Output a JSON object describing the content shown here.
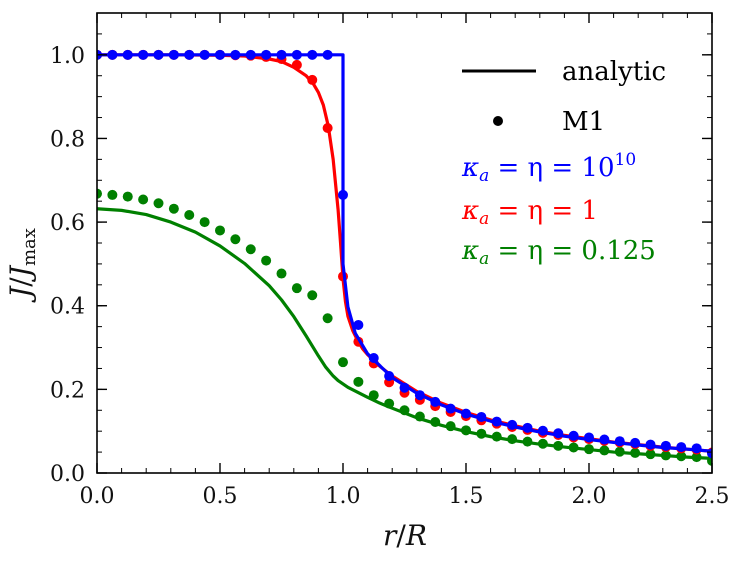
{
  "chart_data": {
    "type": "line",
    "title": "",
    "xlabel": "r/R",
    "ylabel": "J/J_max",
    "xlim": [
      0.0,
      2.5
    ],
    "ylim": [
      0.0,
      1.1
    ],
    "xticks": [
      "0.0",
      "0.5",
      "1.0",
      "1.5",
      "2.0",
      "2.5"
    ],
    "yticks": [
      "0.0",
      "0.2",
      "0.4",
      "0.6",
      "0.8",
      "1.0"
    ],
    "xlabel_parts": {
      "a": "r",
      "slash": "/",
      "b": "R"
    },
    "ylabel_parts": {
      "a": "J",
      "slash": "/",
      "b": "J",
      "sub": "max"
    },
    "legend": {
      "analytic_label": "analytic",
      "m1_label": "M1",
      "entries": [
        {
          "name": "κ_a = η = 10^10",
          "prefix": "κ",
          "sub": "a",
          "eq": " = η = 10",
          "sup": "10",
          "color": "#0000ff"
        },
        {
          "name": "κ_a = η = 1",
          "prefix": "κ",
          "sub": "a",
          "eq": " = η = 1",
          "sup": "",
          "color": "#ff0000"
        },
        {
          "name": "κ_a = η = 0.125",
          "prefix": "κ",
          "sub": "a",
          "eq": " = η = 0.125",
          "sup": "",
          "color": "#008000"
        }
      ]
    },
    "series": [
      {
        "name": "κ_a = η = 10^10 (analytic)",
        "kind": "line",
        "color": "#0000ff",
        "x": [
          0.0,
          0.998,
          1.0,
          1.0,
          1.02,
          1.05,
          1.1,
          1.2,
          1.3,
          1.4,
          1.5,
          1.6,
          1.7,
          1.8,
          1.9,
          2.0,
          2.1,
          2.2,
          2.3,
          2.4,
          2.5
        ],
        "y": [
          1.0,
          1.0,
          1.0,
          0.5,
          0.397,
          0.334,
          0.285,
          0.228,
          0.191,
          0.163,
          0.141,
          0.124,
          0.11,
          0.098,
          0.088,
          0.08,
          0.073,
          0.067,
          0.061,
          0.057,
          0.052
        ]
      },
      {
        "name": "κ_a = η = 10^10 (M1)",
        "kind": "points",
        "color": "#0000ff",
        "x": [
          0.0,
          0.0625,
          0.125,
          0.1875,
          0.25,
          0.3125,
          0.375,
          0.4375,
          0.5,
          0.5625,
          0.625,
          0.6875,
          0.75,
          0.8125,
          0.875,
          0.9375,
          1.0,
          1.0625,
          1.125,
          1.1875,
          1.25,
          1.3125,
          1.375,
          1.4375,
          1.5,
          1.5625,
          1.625,
          1.6875,
          1.75,
          1.8125,
          1.875,
          1.9375,
          2.0,
          2.0625,
          2.125,
          2.1875,
          2.25,
          2.3125,
          2.375,
          2.4375,
          2.5
        ],
        "y": [
          1.0,
          1.0,
          1.0,
          1.0,
          1.0,
          1.0,
          1.0,
          1.0,
          1.0,
          1.0,
          1.0,
          1.0,
          1.0,
          1.0,
          1.0,
          1.0,
          0.665,
          0.354,
          0.275,
          0.232,
          0.204,
          0.186,
          0.17,
          0.154,
          0.142,
          0.134,
          0.123,
          0.115,
          0.108,
          0.101,
          0.095,
          0.089,
          0.085,
          0.08,
          0.076,
          0.072,
          0.068,
          0.065,
          0.062,
          0.059,
          0.047
        ]
      },
      {
        "name": "κ_a = η = 1 (analytic)",
        "kind": "line",
        "color": "#ff0000",
        "x": [
          0.0,
          0.3,
          0.5,
          0.6,
          0.7,
          0.75,
          0.8,
          0.85,
          0.88,
          0.9,
          0.92,
          0.94,
          0.96,
          0.98,
          0.99,
          1.0,
          1.01,
          1.02,
          1.04,
          1.06,
          1.08,
          1.1,
          1.15,
          1.2,
          1.3,
          1.4,
          1.5,
          1.6,
          1.7,
          1.8,
          1.9,
          2.0,
          2.1,
          2.2,
          2.3,
          2.4,
          2.5
        ],
        "y": [
          1.0,
          1.0,
          0.999,
          0.997,
          0.99,
          0.984,
          0.97,
          0.95,
          0.93,
          0.91,
          0.88,
          0.83,
          0.75,
          0.63,
          0.55,
          0.465,
          0.41,
          0.375,
          0.34,
          0.316,
          0.297,
          0.283,
          0.255,
          0.232,
          0.195,
          0.167,
          0.145,
          0.127,
          0.113,
          0.1,
          0.09,
          0.082,
          0.074,
          0.068,
          0.062,
          0.057,
          0.052
        ]
      },
      {
        "name": "κ_a = η = 1 (M1)",
        "kind": "points",
        "color": "#ff0000",
        "x": [
          0.0,
          0.0625,
          0.125,
          0.1875,
          0.25,
          0.3125,
          0.375,
          0.4375,
          0.5,
          0.5625,
          0.625,
          0.6875,
          0.75,
          0.8125,
          0.875,
          0.9375,
          1.0,
          1.0625,
          1.125,
          1.1875,
          1.25,
          1.3125,
          1.375,
          1.4375,
          1.5,
          1.5625,
          1.625,
          1.6875,
          1.75,
          1.8125,
          1.875,
          1.9375,
          2.0,
          2.0625,
          2.125,
          2.1875,
          2.25,
          2.3125,
          2.375,
          2.4375,
          2.5
        ],
        "y": [
          1.0,
          1.0,
          1.0,
          1.0,
          1.0,
          1.0,
          1.0,
          1.0,
          1.0,
          0.999,
          0.998,
          0.995,
          0.99,
          0.976,
          0.94,
          0.825,
          0.47,
          0.314,
          0.262,
          0.217,
          0.192,
          0.175,
          0.16,
          0.146,
          0.136,
          0.126,
          0.118,
          0.11,
          0.103,
          0.096,
          0.091,
          0.085,
          0.081,
          0.077,
          0.073,
          0.069,
          0.065,
          0.062,
          0.059,
          0.056,
          0.049
        ]
      },
      {
        "name": "κ_a = η = 0.125 (analytic)",
        "kind": "line",
        "color": "#008000",
        "x": [
          0.0,
          0.1,
          0.2,
          0.3,
          0.4,
          0.5,
          0.6,
          0.7,
          0.75,
          0.8,
          0.85,
          0.9,
          0.93,
          0.96,
          0.98,
          1.0,
          1.02,
          1.05,
          1.1,
          1.15,
          1.2,
          1.3,
          1.4,
          1.5,
          1.6,
          1.7,
          1.8,
          1.9,
          2.0,
          2.1,
          2.2,
          2.3,
          2.4,
          2.5
        ],
        "y": [
          0.632,
          0.628,
          0.618,
          0.6,
          0.576,
          0.543,
          0.501,
          0.448,
          0.414,
          0.374,
          0.328,
          0.28,
          0.253,
          0.232,
          0.221,
          0.213,
          0.205,
          0.196,
          0.181,
          0.167,
          0.155,
          0.132,
          0.114,
          0.099,
          0.087,
          0.077,
          0.069,
          0.062,
          0.056,
          0.05,
          0.046,
          0.042,
          0.038,
          0.035
        ]
      },
      {
        "name": "κ_a = η = 0.125 (M1)",
        "kind": "points",
        "color": "#008000",
        "x": [
          0.0,
          0.0625,
          0.125,
          0.1875,
          0.25,
          0.3125,
          0.375,
          0.4375,
          0.5,
          0.5625,
          0.625,
          0.6875,
          0.75,
          0.8125,
          0.875,
          0.9375,
          1.0,
          1.0625,
          1.125,
          1.1875,
          1.25,
          1.3125,
          1.375,
          1.4375,
          1.5,
          1.5625,
          1.625,
          1.6875,
          1.75,
          1.8125,
          1.875,
          1.9375,
          2.0,
          2.0625,
          2.125,
          2.1875,
          2.25,
          2.3125,
          2.375,
          2.4375,
          2.5
        ],
        "y": [
          0.668,
          0.665,
          0.661,
          0.654,
          0.645,
          0.632,
          0.617,
          0.6,
          0.58,
          0.559,
          0.535,
          0.508,
          0.477,
          0.442,
          0.425,
          0.37,
          0.265,
          0.218,
          0.186,
          0.166,
          0.15,
          0.135,
          0.122,
          0.112,
          0.102,
          0.094,
          0.087,
          0.081,
          0.075,
          0.07,
          0.065,
          0.061,
          0.057,
          0.054,
          0.051,
          0.048,
          0.045,
          0.042,
          0.04,
          0.038,
          0.029
        ]
      }
    ]
  }
}
